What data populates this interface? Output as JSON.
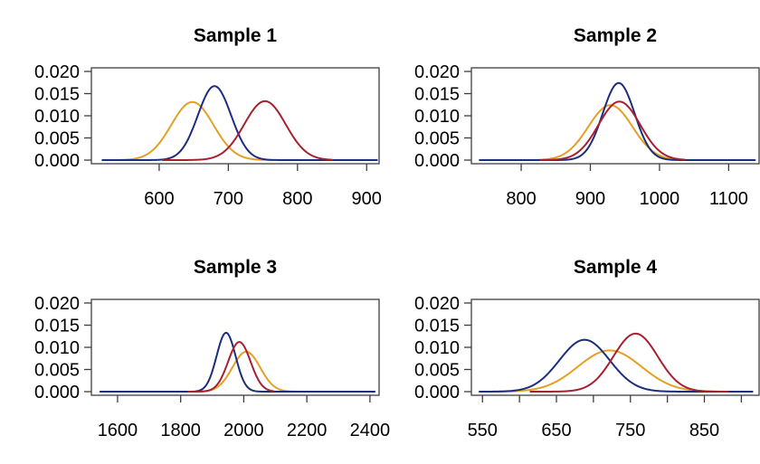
{
  "figure": {
    "background": "#ffffff",
    "axis_color": "#3f3f3f",
    "text_color": "#000000"
  },
  "series_colors": {
    "navy": "#1d2d7d",
    "orange": "#e4a024",
    "red": "#a82030"
  },
  "chart_data": [
    {
      "type": "line",
      "title": "Sample 1",
      "xlabel": "",
      "ylabel": "",
      "grid": false,
      "legend": null,
      "xlim": [
        502,
        918
      ],
      "xticks": [
        600,
        700,
        800,
        900
      ],
      "xtick_labels": [
        "600",
        "700",
        "800",
        "900"
      ],
      "ylim": [
        0,
        0.02
      ],
      "yticks": [
        0,
        0.005,
        0.01,
        0.015,
        0.02
      ],
      "ytick_labels": [
        "0.000",
        "0.005",
        "0.010",
        "0.015",
        "0.020"
      ],
      "series": [
        {
          "name": "orange",
          "color_key": "orange",
          "curve": "gaussian-density",
          "mean": 648,
          "sd": 30.5,
          "peak": 0.0131,
          "x_range": [
            543,
            762
          ]
        },
        {
          "name": "navy",
          "color_key": "navy",
          "curve": "gaussian-density",
          "mean": 680,
          "sd": 24,
          "peak": 0.0167,
          "x_range": [
            518,
            915
          ]
        },
        {
          "name": "red",
          "color_key": "red",
          "curve": "gaussian-density",
          "mean": 753,
          "sd": 30,
          "peak": 0.0133,
          "x_range": [
            605,
            850
          ]
        }
      ]
    },
    {
      "type": "line",
      "title": "Sample 2",
      "xlabel": "",
      "ylabel": "",
      "grid": false,
      "legend": null,
      "xlim": [
        728,
        1144
      ],
      "xticks": [
        800,
        900,
        1000,
        1100
      ],
      "xtick_labels": [
        "800",
        "900",
        "1000",
        "1100"
      ],
      "ylim": [
        0,
        0.02
      ],
      "yticks": [
        0,
        0.005,
        0.01,
        0.015,
        0.02
      ],
      "ytick_labels": [
        "0.000",
        "0.005",
        "0.010",
        "0.015",
        "0.020"
      ],
      "series": [
        {
          "name": "orange",
          "color_key": "orange",
          "curve": "gaussian-density",
          "mean": 929,
          "sd": 32,
          "peak": 0.0124,
          "x_range": [
            823,
            1040
          ]
        },
        {
          "name": "navy",
          "color_key": "navy",
          "curve": "gaussian-density",
          "mean": 941,
          "sd": 23,
          "peak": 0.0174,
          "x_range": [
            740,
            1138
          ]
        },
        {
          "name": "red",
          "color_key": "red",
          "curve": "gaussian-density",
          "mean": 942,
          "sd": 30,
          "peak": 0.0132,
          "x_range": [
            828,
            1036
          ]
        }
      ]
    },
    {
      "type": "line",
      "title": "Sample 3",
      "xlabel": "",
      "ylabel": "",
      "grid": false,
      "legend": null,
      "xlim": [
        1517,
        2429
      ],
      "xticks": [
        1600,
        1800,
        2000,
        2200,
        2400
      ],
      "xtick_labels": [
        "1600",
        "1800",
        "2000",
        "2200",
        "2400"
      ],
      "ylim": [
        0,
        0.02
      ],
      "yticks": [
        0,
        0.005,
        0.01,
        0.015,
        0.02
      ],
      "ytick_labels": [
        "0.000",
        "0.005",
        "0.010",
        "0.015",
        "0.020"
      ],
      "series": [
        {
          "name": "orange",
          "color_key": "orange",
          "curve": "gaussian-density",
          "mean": 2008,
          "sd": 44,
          "peak": 0.009,
          "x_range": [
            1838,
            2165
          ]
        },
        {
          "name": "navy",
          "color_key": "navy",
          "curve": "gaussian-density",
          "mean": 1944,
          "sd": 30,
          "peak": 0.0133,
          "x_range": [
            1545,
            2415
          ]
        },
        {
          "name": "red",
          "color_key": "red",
          "curve": "gaussian-density",
          "mean": 1986,
          "sd": 35.5,
          "peak": 0.0112,
          "x_range": [
            1825,
            2095
          ]
        }
      ]
    },
    {
      "type": "line",
      "title": "Sample 4",
      "xlabel": "",
      "ylabel": "",
      "grid": false,
      "legend": null,
      "xlim": [
        535,
        924
      ],
      "xticks": [
        550,
        600,
        650,
        700,
        750,
        800,
        850,
        900
      ],
      "xtick_labels": [
        "550",
        "",
        "650",
        "",
        "750",
        "",
        "850",
        ""
      ],
      "ylim": [
        0,
        0.02
      ],
      "yticks": [
        0,
        0.005,
        0.01,
        0.015,
        0.02
      ],
      "ytick_labels": [
        "0.000",
        "0.005",
        "0.010",
        "0.015",
        "0.020"
      ],
      "series": [
        {
          "name": "orange",
          "color_key": "orange",
          "curve": "gaussian-density",
          "mean": 722,
          "sd": 43,
          "peak": 0.0093,
          "x_range": [
            560,
            888
          ]
        },
        {
          "name": "navy",
          "color_key": "navy",
          "curve": "gaussian-density",
          "mean": 688,
          "sd": 34,
          "peak": 0.0117,
          "x_range": [
            546,
            915
          ]
        },
        {
          "name": "red",
          "color_key": "red",
          "curve": "gaussian-density",
          "mean": 757,
          "sd": 30,
          "peak": 0.0131,
          "x_range": [
            615,
            882
          ]
        }
      ]
    }
  ]
}
